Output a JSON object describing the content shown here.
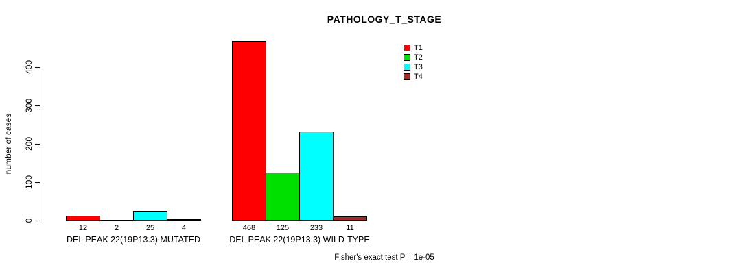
{
  "title": "PATHOLOGY_T_STAGE",
  "footer": "Fisher's exact test P = 1e-05",
  "chart_data": {
    "type": "bar",
    "title": "PATHOLOGY_T_STAGE",
    "xlabel": "",
    "ylabel": "number of cases",
    "ylim": [
      0,
      400
    ],
    "yticks": [
      0,
      100,
      200,
      300,
      400
    ],
    "grid": false,
    "legend_position": "top-right",
    "categories": [
      "DEL PEAK 22(19P13.3) MUTATED",
      "DEL PEAK 22(19P13.3) WILD-TYPE"
    ],
    "series": [
      {
        "name": "T1",
        "color": "#ff0000",
        "values": [
          12,
          468
        ]
      },
      {
        "name": "T2",
        "color": "#00e000",
        "values": [
          2,
          125
        ]
      },
      {
        "name": "T3",
        "color": "#00ffff",
        "values": [
          25,
          233
        ]
      },
      {
        "name": "T4",
        "color": "#a52a2a",
        "values": [
          4,
          11
        ]
      }
    ],
    "bar_labels": [
      [
        "12",
        "2",
        "25",
        "4"
      ],
      [
        "468",
        "125",
        "233",
        "11"
      ]
    ],
    "annotation": "Fisher's exact test P = 1e-05"
  }
}
